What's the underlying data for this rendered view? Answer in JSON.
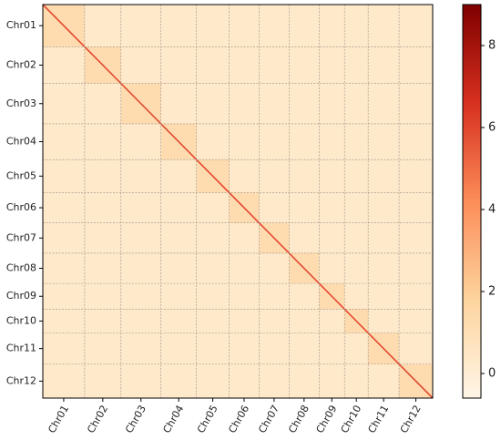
{
  "chart_data": {
    "type": "heatmap",
    "categories": [
      "Chr01",
      "Chr02",
      "Chr03",
      "Chr04",
      "Chr05",
      "Chr06",
      "Chr07",
      "Chr08",
      "Chr09",
      "Chr10",
      "Chr11",
      "Chr12"
    ],
    "sizes": [
      46,
      40,
      44,
      39,
      36,
      33,
      33,
      33,
      28,
      26,
      34,
      37
    ],
    "values": [
      [
        1.2,
        0.3,
        0.3,
        0.3,
        0.3,
        0.3,
        0.3,
        0.3,
        0.3,
        0.3,
        0.3,
        0.3
      ],
      [
        0.3,
        1.2,
        0.3,
        0.3,
        0.3,
        0.3,
        0.3,
        0.3,
        0.3,
        0.3,
        0.3,
        0.3
      ],
      [
        0.3,
        0.3,
        1.2,
        0.3,
        0.3,
        0.3,
        0.3,
        0.3,
        0.3,
        0.3,
        0.3,
        0.3
      ],
      [
        0.3,
        0.3,
        0.3,
        1.2,
        0.3,
        0.3,
        0.3,
        0.3,
        0.3,
        0.3,
        0.3,
        0.3
      ],
      [
        0.3,
        0.3,
        0.3,
        0.3,
        1.2,
        0.3,
        0.3,
        0.3,
        0.3,
        0.3,
        0.3,
        0.3
      ],
      [
        0.3,
        0.3,
        0.3,
        0.3,
        0.3,
        1.2,
        0.3,
        0.3,
        0.3,
        0.3,
        0.3,
        0.3
      ],
      [
        0.3,
        0.3,
        0.3,
        0.3,
        0.3,
        0.3,
        1.2,
        0.3,
        0.3,
        0.3,
        0.3,
        0.3
      ],
      [
        0.3,
        0.3,
        0.3,
        0.3,
        0.3,
        0.3,
        0.3,
        1.2,
        0.3,
        0.3,
        0.3,
        0.3
      ],
      [
        0.3,
        0.3,
        0.3,
        0.3,
        0.3,
        0.3,
        0.3,
        0.3,
        1.2,
        0.3,
        0.3,
        0.3
      ],
      [
        0.3,
        0.3,
        0.3,
        0.3,
        0.3,
        0.3,
        0.3,
        0.3,
        0.3,
        1.2,
        0.3,
        0.3
      ],
      [
        0.3,
        0.3,
        0.3,
        0.3,
        0.3,
        0.3,
        0.3,
        0.3,
        0.3,
        0.3,
        1.2,
        0.3
      ],
      [
        0.3,
        0.3,
        0.3,
        0.3,
        0.3,
        0.3,
        0.3,
        0.3,
        0.3,
        0.3,
        0.3,
        1.2
      ]
    ],
    "colorbar": {
      "lim": [
        -0.6,
        9
      ],
      "ticks": [
        0,
        2,
        4,
        6,
        8
      ],
      "colors": [
        "#fff5e6",
        "#fdd49e",
        "#fc8d59",
        "#d7301f",
        "#7f0000"
      ]
    }
  }
}
